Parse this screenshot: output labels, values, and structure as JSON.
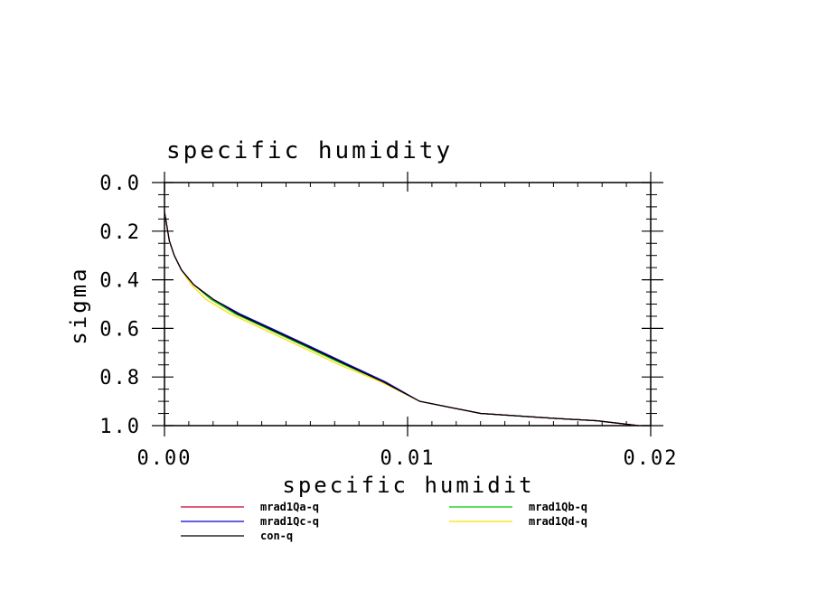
{
  "chart_data": {
    "type": "line",
    "title": "specific humidity",
    "xlabel": "specific humidit",
    "ylabel": "sigma",
    "xlim": [
      0,
      0.02
    ],
    "ylim": [
      0,
      1
    ],
    "y_inverted": true,
    "x_ticks": [
      "0.00",
      "0.01",
      "0.02"
    ],
    "x_tick_values": [
      0,
      0.01,
      0.02
    ],
    "y_ticks": [
      "0.0",
      "0.2",
      "0.4",
      "0.6",
      "0.8",
      "1.0"
    ],
    "y_tick_values": [
      0,
      0.2,
      0.4,
      0.6,
      0.8,
      1.0
    ],
    "grid": false,
    "legend_position": "bottom",
    "series": [
      {
        "name": "mrad1Qa-q",
        "color": "#cc0033",
        "x": [
          0.0,
          0.0001,
          0.0002,
          0.0004,
          0.0007,
          0.0012,
          0.002,
          0.003,
          0.0043,
          0.0058,
          0.0075,
          0.009,
          0.0105,
          0.013,
          0.016,
          0.0178,
          0.0195
        ],
        "y": [
          0.12,
          0.18,
          0.24,
          0.3,
          0.36,
          0.42,
          0.48,
          0.54,
          0.6,
          0.67,
          0.75,
          0.82,
          0.9,
          0.95,
          0.97,
          0.98,
          1.0
        ]
      },
      {
        "name": "mrad1Qb-q",
        "color": "#00cc00",
        "x": [
          0.0,
          0.0001,
          0.0002,
          0.0004,
          0.0007,
          0.0012,
          0.0019,
          0.0029,
          0.0042,
          0.0057,
          0.0074,
          0.009,
          0.0105,
          0.013,
          0.016,
          0.0178,
          0.0195
        ],
        "y": [
          0.12,
          0.18,
          0.24,
          0.3,
          0.36,
          0.42,
          0.48,
          0.54,
          0.6,
          0.67,
          0.75,
          0.82,
          0.9,
          0.95,
          0.97,
          0.98,
          1.0
        ]
      },
      {
        "name": "mrad1Qc-q",
        "color": "#0000cc",
        "x": [
          0.0,
          0.0001,
          0.0002,
          0.0004,
          0.0007,
          0.0012,
          0.002,
          0.0031,
          0.0044,
          0.0059,
          0.0076,
          0.0091,
          0.0105,
          0.013,
          0.016,
          0.0178,
          0.0195
        ],
        "y": [
          0.12,
          0.18,
          0.24,
          0.3,
          0.36,
          0.42,
          0.48,
          0.54,
          0.6,
          0.67,
          0.75,
          0.82,
          0.9,
          0.95,
          0.97,
          0.98,
          1.0
        ]
      },
      {
        "name": "mrad1Qd-q",
        "color": "#ffdd00",
        "x": [
          0.0,
          0.0001,
          0.0002,
          0.0004,
          0.0007,
          0.0011,
          0.0017,
          0.0027,
          0.004,
          0.0055,
          0.0072,
          0.0089,
          0.0105,
          0.013,
          0.016,
          0.0178,
          0.0195
        ],
        "y": [
          0.12,
          0.18,
          0.24,
          0.3,
          0.36,
          0.42,
          0.48,
          0.54,
          0.6,
          0.67,
          0.75,
          0.82,
          0.9,
          0.95,
          0.97,
          0.98,
          1.0
        ]
      },
      {
        "name": "con-q",
        "color": "#000000",
        "x": [
          0.0,
          0.0001,
          0.0002,
          0.0004,
          0.0007,
          0.0012,
          0.002,
          0.003,
          0.0043,
          0.0058,
          0.0075,
          0.009,
          0.0105,
          0.013,
          0.016,
          0.0178,
          0.0195
        ],
        "y": [
          0.12,
          0.18,
          0.24,
          0.3,
          0.36,
          0.42,
          0.48,
          0.54,
          0.6,
          0.67,
          0.75,
          0.82,
          0.9,
          0.95,
          0.97,
          0.98,
          1.0
        ]
      }
    ]
  }
}
